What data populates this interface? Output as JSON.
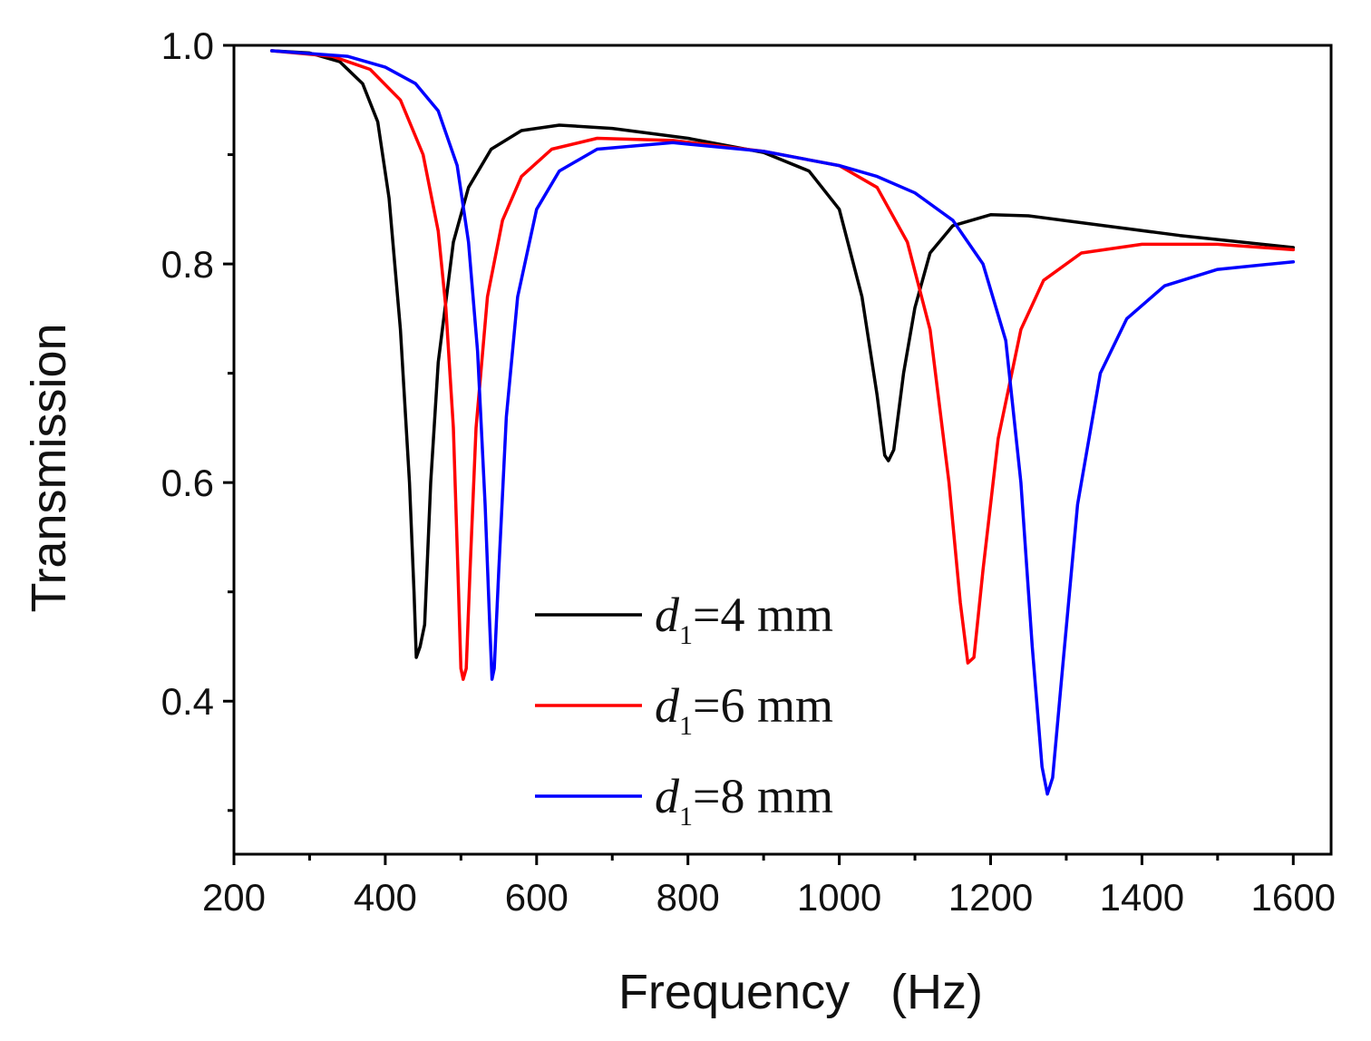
{
  "chart_data": {
    "type": "line",
    "title": "",
    "xlabel": "Frequency   (Hz)",
    "ylabel": "Transmission",
    "xlim": [
      200,
      1650
    ],
    "ylim": [
      0.26,
      1.0
    ],
    "x_ticks": [
      200,
      400,
      600,
      800,
      1000,
      1200,
      1400,
      1600
    ],
    "x_tick_labels": [
      "200",
      "400",
      "600",
      "800",
      "1000",
      "1200",
      "1400",
      "1600"
    ],
    "y_ticks": [
      0.4,
      0.6,
      0.8,
      1.0
    ],
    "y_tick_labels": [
      "0.4",
      "0.6",
      "0.8",
      "1.0"
    ],
    "grid": false,
    "legend_position": "bottom-center",
    "series": [
      {
        "name": "d1=4 mm",
        "label_var": "d",
        "label_sub": "1",
        "label_rest": "=4 mm",
        "color": "#000000",
        "points": [
          [
            250,
            0.995
          ],
          [
            300,
            0.993
          ],
          [
            340,
            0.985
          ],
          [
            370,
            0.965
          ],
          [
            390,
            0.93
          ],
          [
            405,
            0.86
          ],
          [
            420,
            0.74
          ],
          [
            432,
            0.6
          ],
          [
            438,
            0.5
          ],
          [
            441,
            0.44
          ],
          [
            446,
            0.45
          ],
          [
            452,
            0.47
          ],
          [
            460,
            0.6
          ],
          [
            470,
            0.71
          ],
          [
            490,
            0.82
          ],
          [
            510,
            0.87
          ],
          [
            540,
            0.905
          ],
          [
            580,
            0.922
          ],
          [
            630,
            0.927
          ],
          [
            700,
            0.924
          ],
          [
            800,
            0.915
          ],
          [
            900,
            0.902
          ],
          [
            960,
            0.885
          ],
          [
            1000,
            0.85
          ],
          [
            1030,
            0.77
          ],
          [
            1050,
            0.68
          ],
          [
            1060,
            0.625
          ],
          [
            1065,
            0.62
          ],
          [
            1072,
            0.63
          ],
          [
            1085,
            0.7
          ],
          [
            1100,
            0.76
          ],
          [
            1120,
            0.81
          ],
          [
            1150,
            0.835
          ],
          [
            1200,
            0.845
          ],
          [
            1250,
            0.844
          ],
          [
            1350,
            0.835
          ],
          [
            1450,
            0.826
          ],
          [
            1600,
            0.815
          ]
        ]
      },
      {
        "name": "d1=6 mm",
        "label_var": "d",
        "label_sub": "1",
        "label_rest": "=6 mm",
        "color": "#ff0000",
        "points": [
          [
            250,
            0.995
          ],
          [
            330,
            0.99
          ],
          [
            380,
            0.978
          ],
          [
            420,
            0.95
          ],
          [
            450,
            0.9
          ],
          [
            470,
            0.83
          ],
          [
            480,
            0.76
          ],
          [
            490,
            0.65
          ],
          [
            496,
            0.52
          ],
          [
            500,
            0.43
          ],
          [
            503,
            0.42
          ],
          [
            507,
            0.43
          ],
          [
            512,
            0.52
          ],
          [
            520,
            0.65
          ],
          [
            535,
            0.77
          ],
          [
            555,
            0.84
          ],
          [
            580,
            0.88
          ],
          [
            620,
            0.905
          ],
          [
            680,
            0.915
          ],
          [
            780,
            0.913
          ],
          [
            900,
            0.903
          ],
          [
            1000,
            0.89
          ],
          [
            1050,
            0.87
          ],
          [
            1090,
            0.82
          ],
          [
            1120,
            0.74
          ],
          [
            1145,
            0.6
          ],
          [
            1160,
            0.49
          ],
          [
            1170,
            0.435
          ],
          [
            1178,
            0.44
          ],
          [
            1190,
            0.52
          ],
          [
            1210,
            0.64
          ],
          [
            1240,
            0.74
          ],
          [
            1270,
            0.785
          ],
          [
            1320,
            0.81
          ],
          [
            1400,
            0.818
          ],
          [
            1500,
            0.818
          ],
          [
            1600,
            0.813
          ]
        ]
      },
      {
        "name": "d1=8 mm",
        "label_var": "d",
        "label_sub": "1",
        "label_rest": "=8 mm",
        "color": "#0000ff",
        "points": [
          [
            250,
            0.995
          ],
          [
            350,
            0.99
          ],
          [
            400,
            0.98
          ],
          [
            440,
            0.965
          ],
          [
            470,
            0.94
          ],
          [
            495,
            0.89
          ],
          [
            510,
            0.82
          ],
          [
            522,
            0.72
          ],
          [
            532,
            0.58
          ],
          [
            538,
            0.47
          ],
          [
            541,
            0.42
          ],
          [
            544,
            0.43
          ],
          [
            550,
            0.52
          ],
          [
            560,
            0.66
          ],
          [
            575,
            0.77
          ],
          [
            600,
            0.85
          ],
          [
            630,
            0.885
          ],
          [
            680,
            0.905
          ],
          [
            780,
            0.911
          ],
          [
            900,
            0.903
          ],
          [
            1000,
            0.89
          ],
          [
            1050,
            0.88
          ],
          [
            1100,
            0.865
          ],
          [
            1150,
            0.84
          ],
          [
            1190,
            0.8
          ],
          [
            1220,
            0.73
          ],
          [
            1240,
            0.6
          ],
          [
            1255,
            0.45
          ],
          [
            1268,
            0.34
          ],
          [
            1275,
            0.315
          ],
          [
            1282,
            0.33
          ],
          [
            1295,
            0.43
          ],
          [
            1315,
            0.58
          ],
          [
            1345,
            0.7
          ],
          [
            1380,
            0.75
          ],
          [
            1430,
            0.78
          ],
          [
            1500,
            0.795
          ],
          [
            1600,
            0.802
          ]
        ]
      }
    ]
  }
}
